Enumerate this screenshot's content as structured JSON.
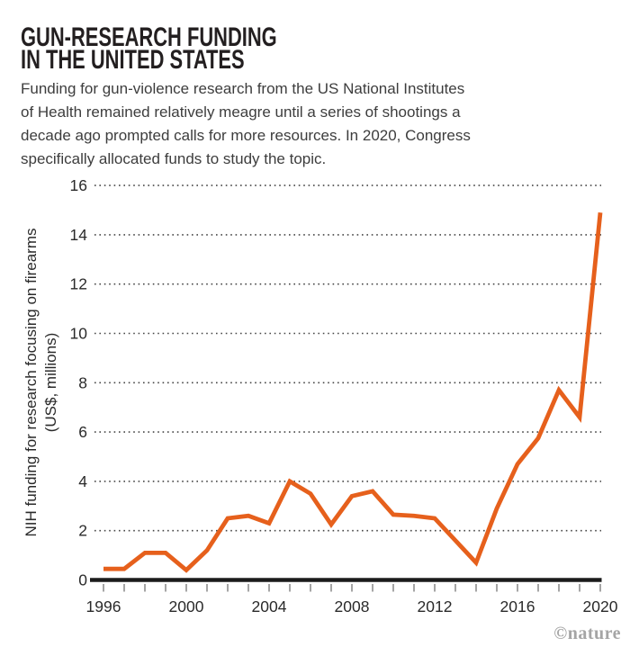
{
  "header": {
    "title_line1": "GUN-RESEARCH FUNDING",
    "title_line2": "IN THE UNITED STATES",
    "subtitle_lines": [
      "Funding for gun-violence research from the US National Institutes",
      "of Health remained relatively meagre until a series of shootings a",
      "decade ago prompted calls for more resources. In 2020, Congress",
      "specifically allocated funds to study the topic."
    ]
  },
  "chart_data": {
    "type": "line",
    "title": "Gun-research funding in the United States",
    "series_name": "NIH funding for firearms research",
    "x": [
      1996,
      1997,
      1998,
      1999,
      2000,
      2001,
      2002,
      2003,
      2004,
      2005,
      2006,
      2007,
      2008,
      2009,
      2010,
      2011,
      2012,
      2013,
      2014,
      2015,
      2016,
      2017,
      2018,
      2019,
      2020
    ],
    "values": [
      0.45,
      0.45,
      1.1,
      1.1,
      0.4,
      1.2,
      2.5,
      2.6,
      2.3,
      4.0,
      3.5,
      2.25,
      3.4,
      3.6,
      2.65,
      2.6,
      2.5,
      1.6,
      0.7,
      2.9,
      4.7,
      5.75,
      7.7,
      6.6,
      14.9
    ],
    "xlabel": "",
    "ylabel_line1": "NIH funding for research focusing on firearms",
    "ylabel_line2": "(US$, millions)",
    "ylim": [
      0,
      16
    ],
    "ytick_step": 2,
    "ytick_labels": [
      "0",
      "2",
      "4",
      "6",
      "8",
      "10",
      "12",
      "14",
      "16"
    ],
    "xtick_labeled_years": [
      1996,
      2000,
      2004,
      2008,
      2012,
      2016,
      2020
    ],
    "grid": "horizontal-dotted",
    "legend": "none",
    "colors": {
      "line": "#e6601c",
      "axis": "#1c1c1c",
      "gridline": "#474747",
      "tick": "#9b9b9b",
      "tick_label": "#2a2a2a"
    }
  },
  "credit": {
    "label": "©nature"
  }
}
